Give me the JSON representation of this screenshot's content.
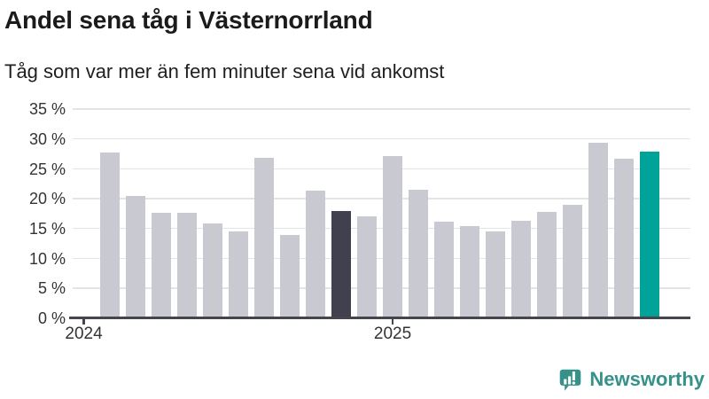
{
  "header": {
    "title": "Andel sena tåg i Västernorrland",
    "subtitle": "Tåg som var mer än fem minuter sena vid ankomst"
  },
  "chart_data": {
    "type": "bar",
    "title": "Andel sena tåg i Västernorrland",
    "subtitle": "Tåg som var mer än fem minuter sena vid ankomst",
    "unit": "%",
    "categories": [
      "feb 2024",
      "mar 2024",
      "apr 2024",
      "maj 2024",
      "jun 2024",
      "jul 2024",
      "aug 2024",
      "sep 2024",
      "okt 2024",
      "nov 2024",
      "dec 2024",
      "jan 2025",
      "feb 2025",
      "mar 2025",
      "apr 2025",
      "maj 2025",
      "jun 2025",
      "jul 2025",
      "aug 2025",
      "sep 2025",
      "okt 2025",
      "nov 2025"
    ],
    "values": [
      27.6,
      20.4,
      17.5,
      17.5,
      15.7,
      14.4,
      26.7,
      13.8,
      21.2,
      17.8,
      16.9,
      27.0,
      21.4,
      16.1,
      15.3,
      14.4,
      16.2,
      17.7,
      18.9,
      29.3,
      26.6,
      27.7
    ],
    "highlight_dark_index": 9,
    "highlight_teal_index": 21,
    "ylim": [
      0,
      35
    ],
    "yticks": [
      0,
      5,
      10,
      15,
      20,
      25,
      30,
      35
    ],
    "ytick_labels": [
      "0 %",
      "5 %",
      "10 %",
      "15 %",
      "20 %",
      "25 %",
      "30 %",
      "35 %"
    ],
    "grid": true,
    "legend_position": "none",
    "x_axis": {
      "total_slots": 23,
      "bar_start_slot": 1,
      "ticks": [
        {
          "label": "2024",
          "slot": 0
        },
        {
          "label": "2025",
          "slot": 12
        }
      ]
    },
    "colors": {
      "bar_default": "#c9c9d1",
      "bar_dark": "#40404e",
      "bar_teal": "#00a399",
      "gridline": "#e4e4e7",
      "axis": "#45454d",
      "axis_text": "#333333"
    }
  },
  "branding": {
    "logo_text": "Newsworthy",
    "logo_color": "#35918a"
  }
}
